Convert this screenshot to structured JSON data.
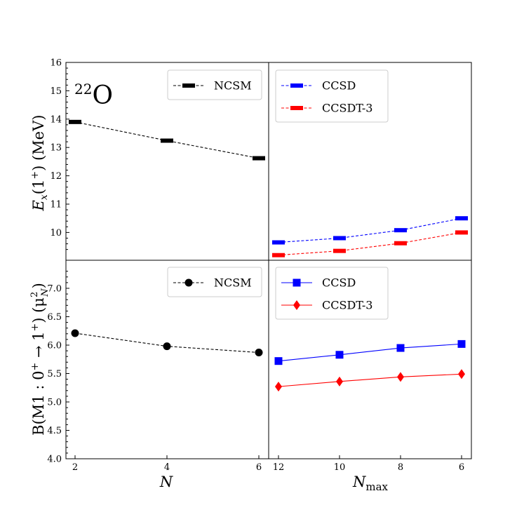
{
  "chart_data": {
    "type": "line",
    "nucleus_label": {
      "mass": "22",
      "symbol": "O"
    },
    "y_axis_top": {
      "label_main": "E",
      "label_sub": "x",
      "label_rest": "(1",
      "label_sup": "+",
      "label_end": ") (MeV)"
    },
    "y_axis_bottom": {
      "label_part1": "B(M1 : 0",
      "label_sup1": "+",
      "label_arrow": " → 1",
      "label_sup2": "+",
      "label_part2": ") (μ",
      "label_sup3": "2",
      "label_sub3": "N",
      "label_end": ")"
    },
    "x_axis_left": {
      "label": "N"
    },
    "x_axis_right": {
      "label_main": "N",
      "label_sub": "max"
    },
    "ylim_top": [
      9.3,
      16
    ],
    "yticks_top": [
      "10",
      "11",
      "12",
      "13",
      "14",
      "15",
      "16"
    ],
    "ylim_bottom": [
      4.0,
      7.4
    ],
    "yticks_bottom": [
      "4.0",
      "4.5",
      "5.0",
      "5.5",
      "6.0",
      "6.5",
      "7.0"
    ],
    "x_left_ticks": [
      "2",
      "4",
      "6"
    ],
    "x_right_ticks": [
      "12",
      "10",
      "8",
      "6"
    ],
    "left_top_series": [
      {
        "name": "NCSM",
        "color": "#000000",
        "marker": "bar",
        "linestyle": "dashed",
        "x": [
          2,
          4,
          6
        ],
        "y": [
          13.9,
          13.24,
          12.62
        ]
      }
    ],
    "right_top_series": [
      {
        "name": "CCSD",
        "color": "#0000ff",
        "marker": "bar",
        "linestyle": "dashed",
        "x": [
          12,
          10,
          8,
          6
        ],
        "y": [
          9.65,
          9.8,
          10.08,
          10.5
        ]
      },
      {
        "name": "CCSDT-3",
        "color": "#ff0000",
        "marker": "bar",
        "linestyle": "dashed",
        "x": [
          12,
          10,
          8,
          6
        ],
        "y": [
          9.2,
          9.35,
          9.62,
          10.0
        ]
      }
    ],
    "left_bottom_series": [
      {
        "name": "NCSM",
        "color": "#000000",
        "marker": "circle",
        "linestyle": "dashed",
        "x": [
          2,
          4,
          6
        ],
        "y": [
          6.21,
          5.98,
          5.87
        ]
      }
    ],
    "right_bottom_series": [
      {
        "name": "CCSD",
        "color": "#0000ff",
        "marker": "square",
        "linestyle": "solid",
        "x": [
          12,
          10,
          8,
          6
        ],
        "y": [
          5.72,
          5.83,
          5.95,
          6.02
        ]
      },
      {
        "name": "CCSDT-3",
        "color": "#ff0000",
        "marker": "diamond",
        "linestyle": "solid",
        "x": [
          12,
          10,
          8,
          6
        ],
        "y": [
          5.27,
          5.36,
          5.44,
          5.49
        ]
      }
    ]
  }
}
